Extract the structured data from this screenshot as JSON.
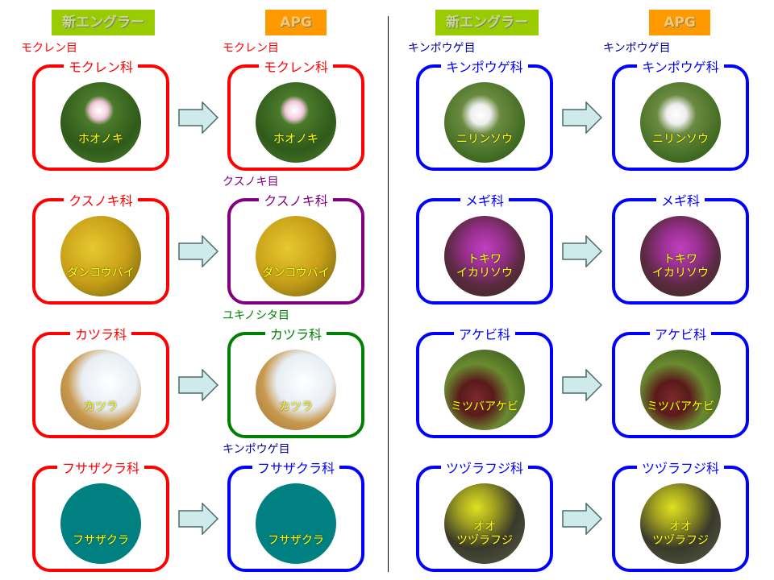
{
  "headers": {
    "left_old": "新エングラー",
    "left_new": "APG",
    "right_old": "新エングラー",
    "right_new": "APG"
  },
  "colors": {
    "red": "#ff0000",
    "purple": "#800080",
    "green": "#008000",
    "blue": "#0000ff",
    "order_blue": "#000099"
  },
  "left_rows": [
    {
      "old": {
        "order": "モクレン目",
        "family": "モクレン科",
        "plant": "ホオノキ",
        "color": "#ff0000"
      },
      "new": {
        "order": "モクレン目",
        "family": "モクレン科",
        "plant": "ホオノキ",
        "color": "#ff0000"
      },
      "image": "magnolia"
    },
    {
      "old": {
        "order": "",
        "family": "クスノキ科",
        "plant": "ダンコウバイ",
        "color": "#ff0000"
      },
      "new": {
        "order": "クスノキ目",
        "family": "クスノキ科",
        "plant": "ダンコウバイ",
        "color": "#800080"
      },
      "image": "yellow-leaves"
    },
    {
      "old": {
        "order": "",
        "family": "カツラ科",
        "plant": "カツラ",
        "color": "#ff0000"
      },
      "new": {
        "order": "ユキノシタ目",
        "family": "カツラ科",
        "plant": "カツラ",
        "color": "#008000"
      },
      "image": "katsura-fruit"
    },
    {
      "old": {
        "order": "",
        "family": "フサザクラ科",
        "plant": "フサザクラ",
        "color": "#ff0000"
      },
      "new": {
        "order": "キンポウゲ目",
        "family": "フサザクラ科",
        "plant": "フサザクラ",
        "color": "#0000ff"
      },
      "image": "teal-fill"
    }
  ],
  "right_rows": [
    {
      "old": {
        "order": "キンポウゲ目",
        "family": "キンポウゲ科",
        "plant": "ニリンソウ",
        "color": "#0000ff"
      },
      "new": {
        "order": "キンポウゲ目",
        "family": "キンポウゲ科",
        "plant": "ニリンソウ",
        "color": "#0000ff"
      },
      "image": "anemone"
    },
    {
      "old": {
        "order": "",
        "family": "メギ科",
        "plant": "トキワ\nイカリソウ",
        "color": "#0000ff"
      },
      "new": {
        "order": "",
        "family": "メギ科",
        "plant": "トキワ\nイカリソウ",
        "color": "#0000ff"
      },
      "image": "epimedium"
    },
    {
      "old": {
        "order": "",
        "family": "アケビ科",
        "plant": "ミツバアケビ",
        "color": "#0000ff"
      },
      "new": {
        "order": "",
        "family": "アケビ科",
        "plant": "ミツバアケビ",
        "color": "#0000ff"
      },
      "image": "akebia"
    },
    {
      "old": {
        "order": "",
        "family": "ツヅラフジ科",
        "plant": "オオ\nツヅラフジ",
        "color": "#0000ff"
      },
      "new": {
        "order": "",
        "family": "ツヅラフジ科",
        "plant": "オオ\nツヅラフジ",
        "color": "#0000ff"
      },
      "image": "moonseed"
    }
  ]
}
